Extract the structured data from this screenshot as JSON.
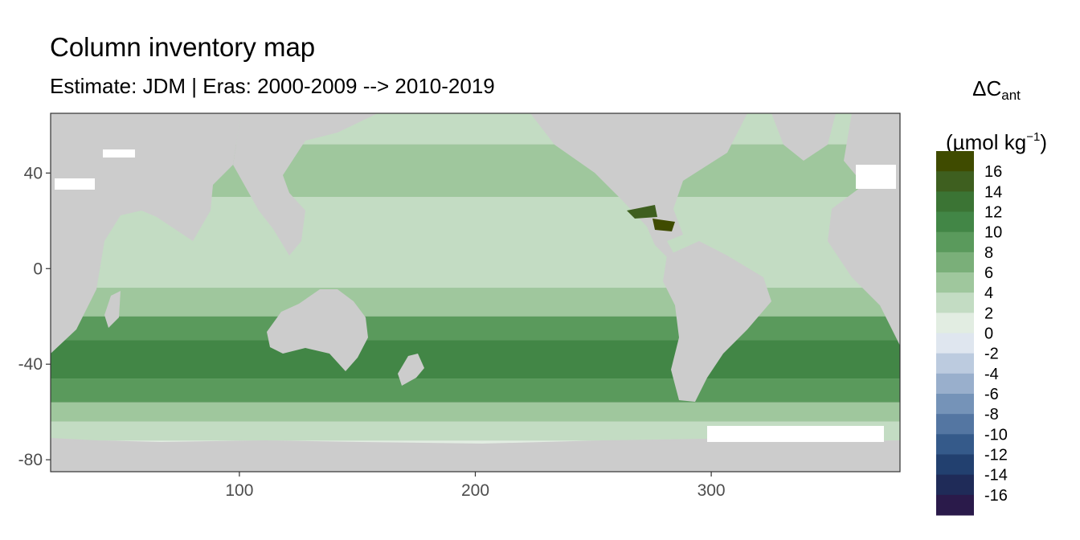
{
  "chart_data": {
    "type": "heatmap",
    "title": "Column inventory map",
    "subtitle": "Estimate: JDM  | Eras: 2000-2009 --> 2010-2019",
    "legend_title": {
      "symbol": "ΔC",
      "subscript": "ant",
      "unit_prefix": "(µmol kg",
      "unit_superscript": "−1",
      "unit_suffix": ")"
    },
    "x_axis": {
      "ticks": [
        100,
        200,
        300
      ],
      "range": [
        20,
        380
      ]
    },
    "y_axis": {
      "ticks": [
        40,
        0,
        -40,
        -80
      ],
      "range": [
        -85,
        65
      ]
    },
    "legend": {
      "placement": "right",
      "labels": [
        "16",
        "14",
        "12",
        "10",
        "8",
        "6",
        "4",
        "2",
        "0",
        "-2",
        "-4",
        "-6",
        "-8",
        "-10",
        "-12",
        "-14",
        "-16"
      ],
      "colors": [
        "#3f4b00",
        "#3e5f1f",
        "#3b7434",
        "#428646",
        "#5a9a5c",
        "#7aaf79",
        "#9fc79d",
        "#c3dcc3",
        "#e2ede2",
        "#dfe6ef",
        "#bccbdf",
        "#99afcc",
        "#7593b8",
        "#5476a2",
        "#355a8a",
        "#22406f",
        "#1f2b58",
        "#2a1a4a"
      ]
    },
    "land_color": "#cccccc",
    "panel_border": "#333333",
    "ocean_bands": [
      {
        "lat_range": [
          52,
          65
        ],
        "value": 3
      },
      {
        "lat_range": [
          30,
          52
        ],
        "value": 4
      },
      {
        "lat_range": [
          8,
          30
        ],
        "value": 3
      },
      {
        "lat_range": [
          -8,
          8
        ],
        "value": 2
      },
      {
        "lat_range": [
          -20,
          -8
        ],
        "value": 5
      },
      {
        "lat_range": [
          -30,
          -20
        ],
        "value": 8
      },
      {
        "lat_range": [
          -46,
          -30
        ],
        "value": 10
      },
      {
        "lat_range": [
          -56,
          -46
        ],
        "value": 9
      },
      {
        "lat_range": [
          -64,
          -56
        ],
        "value": 5
      },
      {
        "lat_range": [
          -72,
          -64
        ],
        "value": 2
      },
      {
        "lat_range": [
          -85,
          -72
        ],
        "value": 0
      }
    ]
  }
}
